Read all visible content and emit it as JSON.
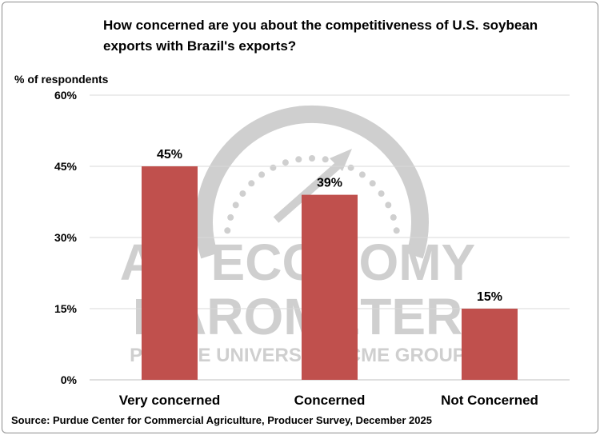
{
  "watermark": {
    "line1": "AG ECONOMY",
    "line2": "BAROMETER",
    "line3": "PURDUE UNIVERSITY | CME GROUP",
    "color": "#cfcfcf"
  },
  "chart_data": {
    "type": "bar",
    "title": "How concerned are you about the competitiveness of U.S. soybean exports with Brazil's exports?",
    "ylabel": "% of respondents",
    "xlabel": "",
    "categories": [
      "Very concerned",
      "Concerned",
      "Not Concerned"
    ],
    "values": [
      45,
      39,
      15
    ],
    "data_labels": [
      "45%",
      "39%",
      "15%"
    ],
    "ylim": [
      0,
      60
    ],
    "yticks": [
      0,
      15,
      30,
      45,
      60
    ],
    "ytick_labels": [
      "0%",
      "15%",
      "30%",
      "45%",
      "60%"
    ],
    "grid": true,
    "legend": "none",
    "bar_color": "#c0504d",
    "source": "Source: Purdue Center for Commercial Agriculture, Producer Survey, December 2025"
  }
}
